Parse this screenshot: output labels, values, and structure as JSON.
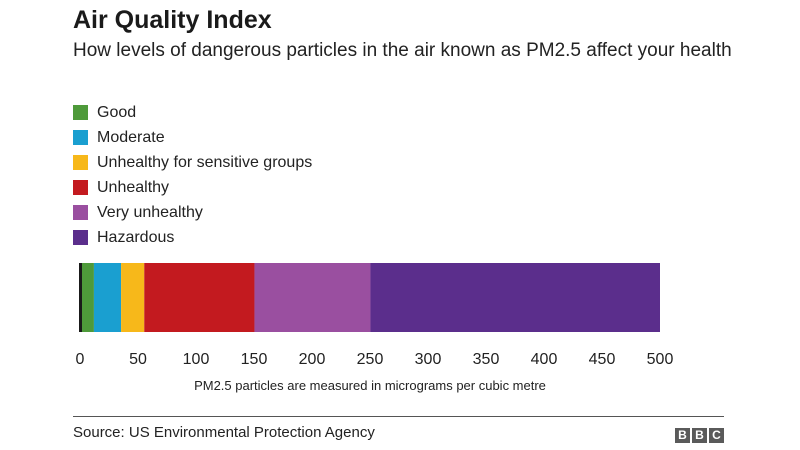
{
  "header": {
    "title": "Air Quality Index",
    "subtitle": "How levels of dangerous particles in the air known as PM2.5 affect your health"
  },
  "chart_data": {
    "type": "bar",
    "orientation": "horizontal-stacked-range",
    "xlabel": "PM2.5 particles are measured in micrograms per cubic metre",
    "xlim": [
      0,
      500
    ],
    "xticks": [
      0,
      50,
      100,
      150,
      200,
      250,
      300,
      350,
      400,
      450,
      500
    ],
    "grid": false,
    "legend_position": "top-left",
    "segments": [
      {
        "name": "Good",
        "start": 0,
        "end": 12,
        "color": "#4e9a3a"
      },
      {
        "name": "Moderate",
        "start": 12,
        "end": 35.4,
        "color": "#1a9fd0"
      },
      {
        "name": "Unhealthy for sensitive groups",
        "start": 35.4,
        "end": 55.4,
        "color": "#f7b81a"
      },
      {
        "name": "Unhealthy",
        "start": 55.4,
        "end": 150.4,
        "color": "#c31a1f"
      },
      {
        "name": "Very unhealthy",
        "start": 150.4,
        "end": 250.4,
        "color": "#9a4fa0"
      },
      {
        "name": "Hazardous",
        "start": 250.4,
        "end": 500,
        "color": "#5b2e8c"
      }
    ]
  },
  "footer": {
    "source": "Source: US Environmental Protection Agency",
    "logo_letters": [
      "B",
      "B",
      "C"
    ]
  }
}
